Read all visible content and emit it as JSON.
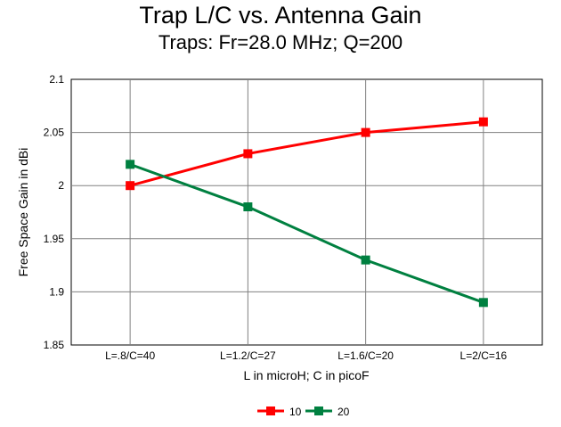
{
  "chart_data": {
    "type": "line",
    "title": "Trap L/C vs. Antenna Gain",
    "subtitle": "Traps:  Fr=28.0 MHz; Q=200",
    "xlabel": "L in microH; C in picoF",
    "ylabel": "Free Space Gain in dBi",
    "categories": [
      "L=.8/C=40",
      "L=1.2/C=27",
      "L=1.6/C=20",
      "L=2/C=16"
    ],
    "ylim": [
      1.85,
      2.1
    ],
    "yticks": [
      "1.85",
      "1.9",
      "1.95",
      "2",
      "2.05",
      "2.1"
    ],
    "grid": true,
    "legend_position": "bottom-center",
    "series": [
      {
        "name": "10",
        "color": "#ff0000",
        "values": [
          2.0,
          2.03,
          2.05,
          2.06
        ]
      },
      {
        "name": "20",
        "color": "#008040",
        "values": [
          2.02,
          1.98,
          1.93,
          1.89
        ]
      }
    ]
  }
}
